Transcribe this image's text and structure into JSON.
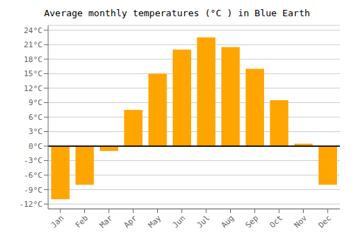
{
  "chart_data": {
    "type": "bar",
    "title": "Average monthly temperatures (°C ) in Blue Earth",
    "categories": [
      "Jan",
      "Feb",
      "Mar",
      "Apr",
      "May",
      "Jun",
      "Jul",
      "Aug",
      "Sep",
      "Oct",
      "Nov",
      "Dec"
    ],
    "values": [
      -11,
      -8,
      -1,
      7.5,
      15,
      20,
      22.5,
      20.5,
      16,
      9.5,
      0.5,
      -8
    ],
    "color": "#FFA500",
    "ylim": [
      -13,
      25
    ],
    "yticks": [
      {
        "value": -12,
        "label": "-12°C"
      },
      {
        "value": -9,
        "label": "-9°C"
      },
      {
        "value": -6,
        "label": "-6°C"
      },
      {
        "value": -3,
        "label": "-3°C"
      },
      {
        "value": 0,
        "label": "0°C"
      },
      {
        "value": 3,
        "label": "3°C"
      },
      {
        "value": 6,
        "label": "6°C"
      },
      {
        "value": 9,
        "label": "9°C"
      },
      {
        "value": 12,
        "label": "12°C"
      },
      {
        "value": 15,
        "label": "15°C"
      },
      {
        "value": 18,
        "label": "18°C"
      },
      {
        "value": 21,
        "label": "21°C"
      },
      {
        "value": 24,
        "label": "24°C"
      }
    ],
    "grid": true
  }
}
